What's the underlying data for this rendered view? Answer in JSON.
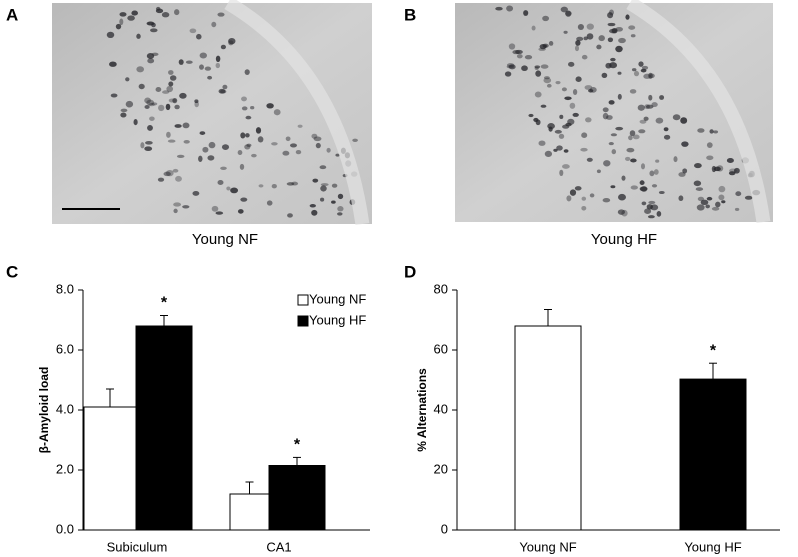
{
  "images": [
    {
      "letter": "A",
      "caption": "Young NF"
    },
    {
      "letter": "B",
      "caption": "Young HF"
    }
  ],
  "chart_data": [
    {
      "type": "grouped-bar",
      "letter": "C",
      "y_label": "β-Amyloid load",
      "categories": [
        "Subiculum",
        "CA1"
      ],
      "series": [
        {
          "name": "Young NF",
          "color": "#ffffff",
          "values": [
            4.1,
            1.2
          ],
          "errors": [
            0.6,
            0.4
          ],
          "significance": [
            null,
            null
          ]
        },
        {
          "name": "Young HF",
          "color": "#000000",
          "values": [
            6.8,
            2.15
          ],
          "errors": [
            0.35,
            0.27
          ],
          "significance": [
            "*",
            "*"
          ]
        }
      ],
      "ylim": [
        0,
        8
      ],
      "yticks": [
        {
          "value": 0,
          "label": "0.0"
        },
        {
          "value": 2,
          "label": "2.0"
        },
        {
          "value": 4,
          "label": "4.0"
        },
        {
          "value": 6,
          "label": "6.0"
        },
        {
          "value": 8,
          "label": "8.0"
        }
      ],
      "legend": "top-right"
    },
    {
      "type": "bar",
      "letter": "D",
      "y_label": "% Alternations",
      "categories": [
        "Young NF",
        "Young HF"
      ],
      "values": [
        68,
        50.3
      ],
      "errors": [
        5.5,
        5.3
      ],
      "colors": [
        "#ffffff",
        "#000000"
      ],
      "significance": [
        null,
        "*"
      ],
      "ylim": [
        0,
        80
      ],
      "yticks": [
        0,
        20,
        40,
        60,
        80
      ]
    }
  ]
}
